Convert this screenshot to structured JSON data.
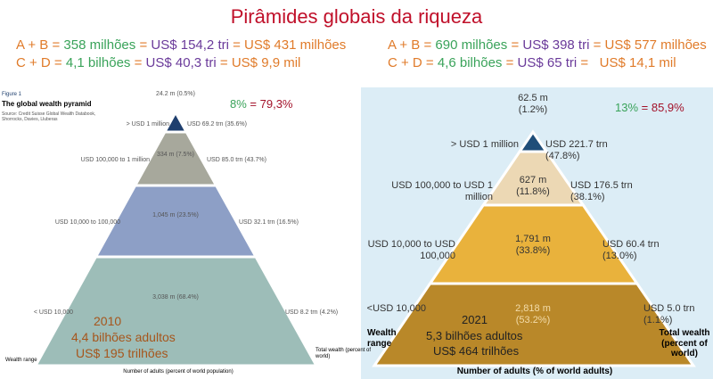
{
  "title": "Pirâmides globais da riqueza",
  "panels": [
    {
      "summary": [
        [
          {
            "text": "A + B =",
            "color": "#e07b2a"
          },
          {
            "text": "358 milhões",
            "color": "#3aa35a"
          },
          {
            "text": "=",
            "color": "#e07b2a"
          },
          {
            "text": "US$ 154,2 tri",
            "color": "#6a3a9a"
          },
          {
            "text": "= US$ 431 milhões",
            "color": "#e07b2a"
          }
        ],
        [
          {
            "text": "C + D =",
            "color": "#e07b2a"
          },
          {
            "text": "4,1 bilhões",
            "color": "#3aa35a"
          },
          {
            "text": "=",
            "color": "#e07b2a"
          },
          {
            "text": "US$ 40,3 tri",
            "color": "#6a3a9a"
          },
          {
            "text": "= US$ 9,9 mil",
            "color": "#e07b2a"
          }
        ]
      ],
      "figure_label": "Figure 1",
      "figure_title": "The global wealth pyramid",
      "source": "Source: Credit Suisse Global Wealth Databook, Shorrocks, Davies, Lluberas",
      "ratio": [
        {
          "text": "8%",
          "color": "#3aa35a"
        },
        {
          "text": "= 79,3%",
          "color": "#a3122a"
        }
      ],
      "levels": [
        {
          "range": "> USD 1 million",
          "adults": "24.2 m (0.5%)",
          "wealth": "USD 69.2 trn (35.6%)"
        },
        {
          "range": "USD 100,000 to 1 million",
          "adults": "334 m (7.5%)",
          "wealth": "USD 85.0 trn (43.7%)"
        },
        {
          "range": "USD 10,000 to 100,000",
          "adults": "1,045 m (23.5%)",
          "wealth": "USD 32.1 trn (16.5%)"
        },
        {
          "range": "< USD 10,000",
          "adults": "3,038 m (68.4%)",
          "wealth": "USD 8.2 trn (4.2%)"
        }
      ],
      "overlay": [
        "2010",
        "4,4 bilhões adultos",
        "US$ 195 trilhões"
      ],
      "y_label": "Wealth range",
      "wealth_label": "Total wealth (percent of world)",
      "x_label": "Number of adults (percent of world population)"
    },
    {
      "summary": [
        [
          {
            "text": "A + B =",
            "color": "#e07b2a"
          },
          {
            "text": "690 milhões",
            "color": "#3aa35a"
          },
          {
            "text": "=",
            "color": "#e07b2a"
          },
          {
            "text": "US$ 398 tri",
            "color": "#6a3a9a"
          },
          {
            "text": "= US$ 577 milhões",
            "color": "#e07b2a"
          }
        ],
        [
          {
            "text": "C + D =",
            "color": "#e07b2a"
          },
          {
            "text": "4,6 bilhões",
            "color": "#3aa35a"
          },
          {
            "text": "=",
            "color": "#e07b2a"
          },
          {
            "text": "US$ 65 tri",
            "color": "#6a3a9a"
          },
          {
            "text": "=   US$ 14,1 mil",
            "color": "#e07b2a"
          }
        ]
      ],
      "ratio": [
        {
          "text": "13%",
          "color": "#3aa35a"
        },
        {
          "text": "= 85,9%",
          "color": "#a3122a"
        }
      ],
      "levels": [
        {
          "range": "> USD 1 million",
          "adults": "62.5 m (1.2%)",
          "wealth": "USD 221.7 trn (47.8%)"
        },
        {
          "range": "USD 100,000 to USD 1 million",
          "adults": "627 m (11.8%)",
          "wealth": "USD 176.5 trn (38.1%)"
        },
        {
          "range": "USD 10,000 to USD 100,000",
          "adults": "1,791 m (33.8%)",
          "wealth": "USD 60.4 trn (13.0%)"
        },
        {
          "range": "<USD 10,000",
          "adults": "2,818 m (53.2%)",
          "wealth": "USD 5.0 trn (1.1%)"
        }
      ],
      "overlay": [
        "2021",
        "5,3 bilhões adultos",
        "US$ 464 trilhões"
      ],
      "y_label": "Wealth range",
      "wealth_label": "Total wealth (percent of world)",
      "x_label": "Number of adults (% of world adults)"
    }
  ]
}
